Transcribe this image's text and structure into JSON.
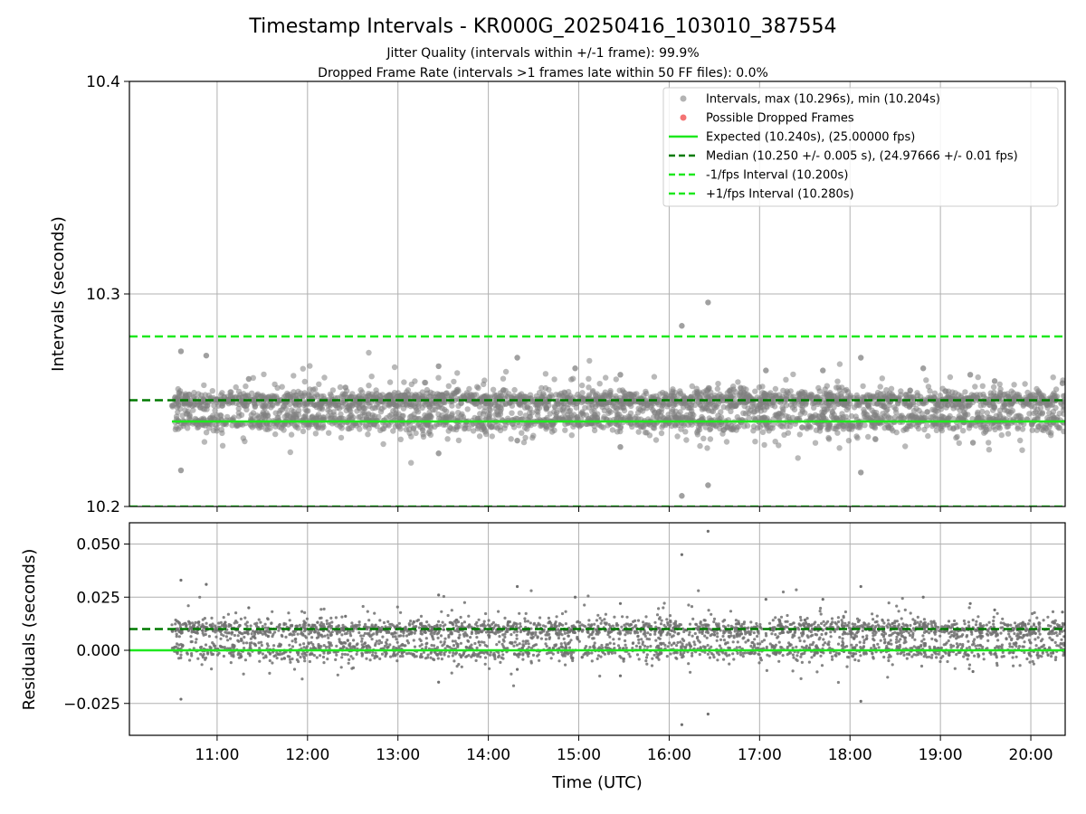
{
  "chart_data": {
    "type": "scatter",
    "title": "Timestamp Intervals - KR000G_20250416_103010_387554",
    "subtitle_lines": [
      "Jitter Quality (intervals within +/-1 frame): 99.9%",
      "Dropped Frame Rate (intervals >1 frames late within 50 FF files): 0.0%"
    ],
    "xlabel": "Time (UTC)",
    "x_range_hours": [
      10.03,
      20.38
    ],
    "x_ticks": [
      {
        "value": 11,
        "label": "11:00"
      },
      {
        "value": 12,
        "label": "12:00"
      },
      {
        "value": 13,
        "label": "13:00"
      },
      {
        "value": 14,
        "label": "14:00"
      },
      {
        "value": 15,
        "label": "15:00"
      },
      {
        "value": 16,
        "label": "16:00"
      },
      {
        "value": 17,
        "label": "17:00"
      },
      {
        "value": 18,
        "label": "18:00"
      },
      {
        "value": 19,
        "label": "19:00"
      },
      {
        "value": 20,
        "label": "20:00"
      }
    ],
    "grid": true,
    "top_panel": {
      "ylabel": "Intervals (seconds)",
      "ylim": [
        10.2,
        10.4
      ],
      "y_ticks": [
        {
          "value": 10.2,
          "label": "10.2"
        },
        {
          "value": 10.3,
          "label": "10.3"
        },
        {
          "value": 10.4,
          "label": "10.4"
        }
      ],
      "legend_position": "top-right",
      "legend": [
        {
          "label": "Intervals, max (10.296s), min (10.204s)",
          "kind": "marker",
          "color": "#808080"
        },
        {
          "label": "Possible Dropped Frames",
          "kind": "marker",
          "color": "#f25c5c"
        },
        {
          "label": "Expected (10.240s), (25.00000 fps)",
          "kind": "line",
          "color": "#1ee81e"
        },
        {
          "label": "Median (10.250 +/- 0.005 s), (24.97666 +/- 0.01 fps)",
          "kind": "dashed",
          "color": "#007a00"
        },
        {
          "label": "-1/fps Interval (10.200s)",
          "kind": "dashed",
          "color": "#1ee81e"
        },
        {
          "label": "+1/fps Interval (10.280s)",
          "kind": "dashed",
          "color": "#1ee81e"
        }
      ],
      "reference_lines": [
        {
          "value": 10.24,
          "style": "solid",
          "color": "#1ee81e",
          "x_start": 10.5
        },
        {
          "value": 10.25,
          "style": "dashed",
          "color": "#007a00",
          "x_start": 10.03
        },
        {
          "value": 10.2,
          "style": "dashed",
          "color": "#1ee81e",
          "x_start": 10.03
        },
        {
          "value": 10.28,
          "style": "dashed",
          "color": "#1ee81e",
          "x_start": 10.03
        }
      ],
      "point_color": "#808080",
      "outliers": [
        {
          "x": 10.6,
          "y": 10.273
        },
        {
          "x": 10.6,
          "y": 10.217
        },
        {
          "x": 10.88,
          "y": 10.271
        },
        {
          "x": 11.35,
          "y": 10.26
        },
        {
          "x": 12.42,
          "y": 10.256
        },
        {
          "x": 13.45,
          "y": 10.266
        },
        {
          "x": 13.45,
          "y": 10.225
        },
        {
          "x": 14.32,
          "y": 10.27
        },
        {
          "x": 14.32,
          "y": 10.231
        },
        {
          "x": 14.96,
          "y": 10.265
        },
        {
          "x": 15.46,
          "y": 10.262
        },
        {
          "x": 15.46,
          "y": 10.228
        },
        {
          "x": 16.14,
          "y": 10.285
        },
        {
          "x": 16.14,
          "y": 10.205
        },
        {
          "x": 16.43,
          "y": 10.296
        },
        {
          "x": 16.43,
          "y": 10.21
        },
        {
          "x": 17.07,
          "y": 10.264
        },
        {
          "x": 17.7,
          "y": 10.264
        },
        {
          "x": 18.12,
          "y": 10.27
        },
        {
          "x": 18.12,
          "y": 10.216
        },
        {
          "x": 18.81,
          "y": 10.265
        },
        {
          "x": 19.33,
          "y": 10.262
        },
        {
          "x": 19.36,
          "y": 10.23
        },
        {
          "x": 19.6,
          "y": 10.259
        },
        {
          "x": 20.35,
          "y": 10.258
        }
      ]
    },
    "bottom_panel": {
      "ylabel": "Residuals (seconds)",
      "ylim": [
        -0.04,
        0.06
      ],
      "y_ticks": [
        {
          "value": 0.05,
          "label": "0.050"
        },
        {
          "value": 0.025,
          "label": "0.025"
        },
        {
          "value": 0.0,
          "label": "0.000"
        },
        {
          "value": -0.025,
          "label": "−0.025"
        }
      ],
      "reference_lines": [
        {
          "value": 0.0,
          "style": "solid",
          "color": "#1ee81e",
          "x_start": 10.03
        },
        {
          "value": 0.01,
          "style": "dashed",
          "color": "#007a00",
          "x_start": 10.03
        }
      ],
      "point_color": "#707070",
      "outliers": [
        {
          "x": 10.6,
          "y": 0.033
        },
        {
          "x": 10.6,
          "y": -0.023
        },
        {
          "x": 10.88,
          "y": 0.031
        },
        {
          "x": 11.35,
          "y": 0.02
        },
        {
          "x": 12.42,
          "y": 0.016
        },
        {
          "x": 13.45,
          "y": 0.026
        },
        {
          "x": 13.45,
          "y": -0.015
        },
        {
          "x": 14.32,
          "y": 0.03
        },
        {
          "x": 14.32,
          "y": -0.009
        },
        {
          "x": 14.96,
          "y": 0.025
        },
        {
          "x": 15.46,
          "y": 0.022
        },
        {
          "x": 15.46,
          "y": -0.012
        },
        {
          "x": 16.14,
          "y": 0.045
        },
        {
          "x": 16.14,
          "y": -0.035
        },
        {
          "x": 16.43,
          "y": 0.056
        },
        {
          "x": 16.43,
          "y": -0.03
        },
        {
          "x": 17.07,
          "y": 0.024
        },
        {
          "x": 17.7,
          "y": 0.024
        },
        {
          "x": 18.12,
          "y": 0.03
        },
        {
          "x": 18.12,
          "y": -0.024
        },
        {
          "x": 18.81,
          "y": 0.025
        },
        {
          "x": 19.33,
          "y": 0.022
        },
        {
          "x": 19.36,
          "y": -0.01
        },
        {
          "x": 19.6,
          "y": 0.019
        },
        {
          "x": 20.35,
          "y": 0.018
        }
      ]
    },
    "series_pattern": {
      "x_range": [
        10.5,
        20.38
      ],
      "upper_cluster_center": 10.25,
      "lower_cluster_center": 10.24,
      "spread": 0.004,
      "approx_points": 3500
    }
  }
}
